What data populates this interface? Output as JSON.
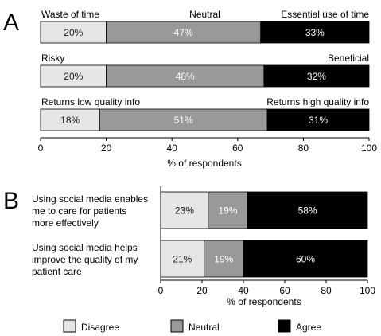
{
  "chart_data": [
    {
      "panel": "A",
      "type": "bar",
      "orientation": "horizontal",
      "stacked": true,
      "xlabel": "% of respondents",
      "xlim": [
        0,
        100
      ],
      "xticks": [
        "0",
        "20",
        "40",
        "60",
        "80",
        "100"
      ],
      "rows": [
        {
          "left_label": "Waste of time",
          "middle_label": "Neutral",
          "right_label": "Essential use of time",
          "values": [
            20,
            47,
            33
          ],
          "value_labels": [
            "20%",
            "47%",
            "33%"
          ]
        },
        {
          "left_label": "Risky",
          "middle_label": "",
          "right_label": "Beneficial",
          "values": [
            20,
            48,
            32
          ],
          "value_labels": [
            "20%",
            "48%",
            "32%"
          ]
        },
        {
          "left_label": "Returns low quality info",
          "middle_label": "",
          "right_label": "Returns high quality info",
          "values": [
            18,
            51,
            31
          ],
          "value_labels": [
            "18%",
            "51%",
            "31%"
          ]
        }
      ],
      "segment_colors": [
        "#e6e6e6",
        "#999999",
        "#000000"
      ],
      "segment_text_colors": [
        "#1a1a1a",
        "#ffffff",
        "#ffffff"
      ]
    },
    {
      "panel": "B",
      "type": "bar",
      "orientation": "horizontal",
      "stacked": true,
      "xlabel": "% of respondents",
      "xlim": [
        0,
        100
      ],
      "xticks": [
        "0",
        "20",
        "40",
        "60",
        "80",
        "100"
      ],
      "rows": [
        {
          "label_lines": [
            "Using social media enables",
            "me to care for patients",
            "more effectively"
          ],
          "values": [
            23,
            19,
            58
          ],
          "value_labels": [
            "23%",
            "19%",
            "58%"
          ]
        },
        {
          "label_lines": [
            "Using social media helps",
            "improve the quality of my",
            "patient care"
          ],
          "values": [
            21,
            19,
            60
          ],
          "value_labels": [
            "21%",
            "19%",
            "60%"
          ]
        }
      ],
      "segment_colors": [
        "#e6e6e6",
        "#999999",
        "#000000"
      ],
      "segment_text_colors": [
        "#1a1a1a",
        "#ffffff",
        "#ffffff"
      ]
    }
  ],
  "legend": {
    "items": [
      {
        "label": "Disagree",
        "color": "#e6e6e6"
      },
      {
        "label": "Neutral",
        "color": "#999999"
      },
      {
        "label": "Agree",
        "color": "#000000"
      }
    ]
  }
}
